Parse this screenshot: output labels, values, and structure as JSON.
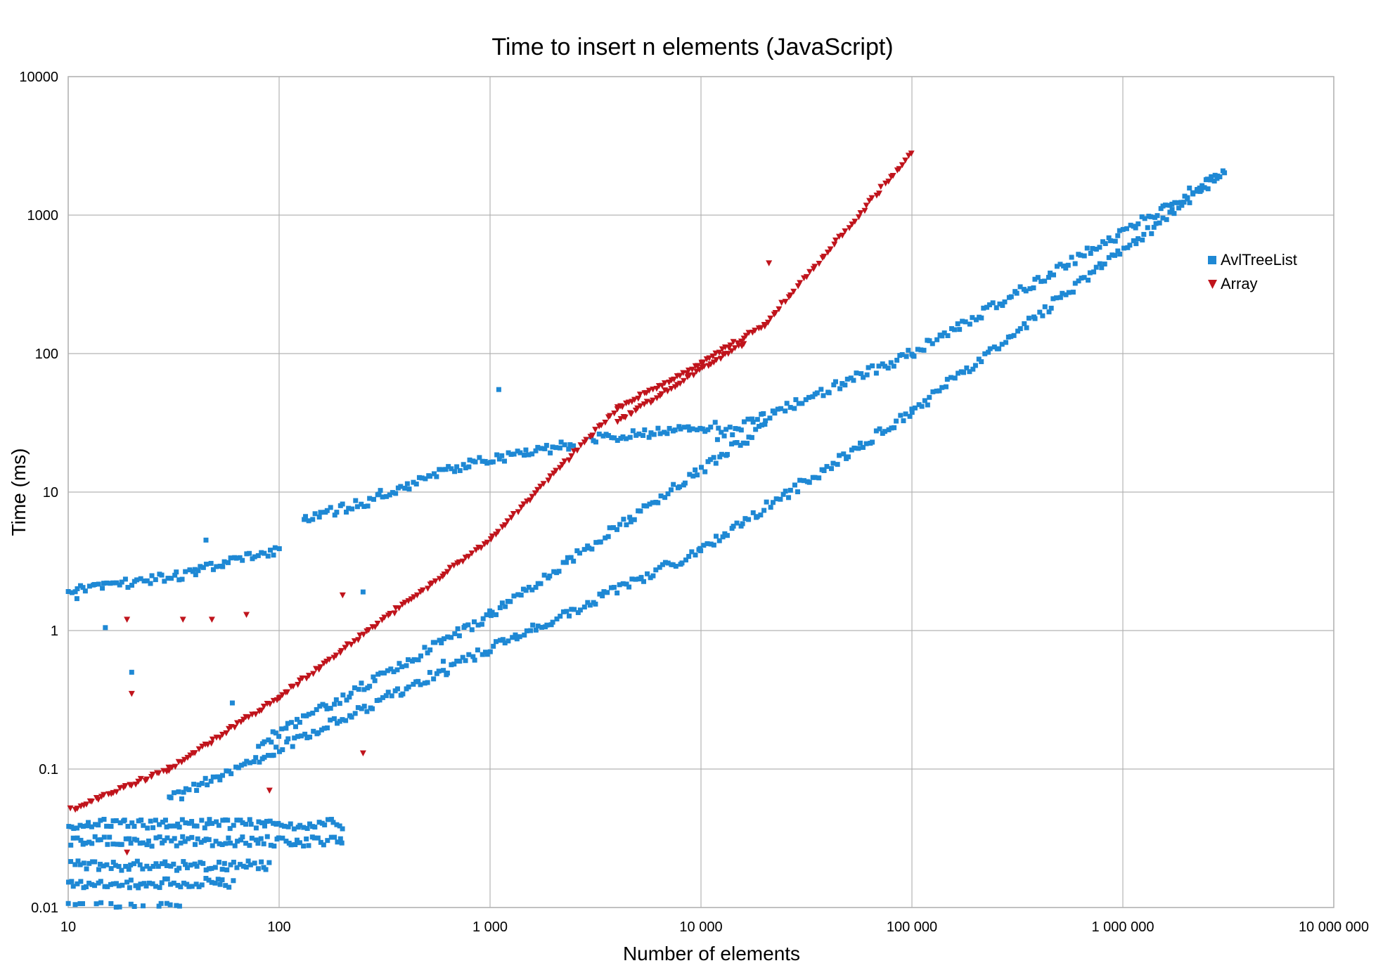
{
  "chart_data": {
    "type": "scatter",
    "title": "Time to insert n elements (JavaScript)",
    "xlabel": "Number of elements",
    "ylabel": "Time (ms)",
    "xscale": "log",
    "yscale": "log",
    "xlim": [
      10,
      10000000
    ],
    "ylim": [
      0.01,
      10000
    ],
    "grid": true,
    "legend_position": "right",
    "x_tick_labels": [
      "10",
      "100",
      "1 000",
      "10 000",
      "100 000",
      "1 000 000",
      "10 000 000"
    ],
    "y_tick_labels": [
      "0.01",
      "0.1",
      "1",
      "10",
      "100",
      "1000",
      "10000"
    ],
    "series": [
      {
        "name": "AvlTreeList",
        "color": "#1e88d4",
        "marker": "square",
        "bands": [
          {
            "from": [
              10,
              1.9
            ],
            "to": [
              40,
              2.6
            ]
          },
          {
            "from": [
              40,
              2.7
            ],
            "to": [
              100,
              3.8
            ]
          },
          {
            "from": [
              130,
              6.3
            ],
            "to": [
              300,
              9.0
            ]
          },
          {
            "from": [
              300,
              9.5
            ],
            "to": [
              800,
              16
            ]
          },
          {
            "from": [
              800,
              16
            ],
            "to": [
              2500,
              22
            ]
          },
          {
            "from": [
              3000,
              24
            ],
            "to": [
              12000,
              30
            ]
          },
          {
            "from": [
              12000,
              25
            ],
            "to": [
              100000,
              100
            ]
          },
          {
            "from": [
              100000,
              100
            ],
            "to": [
              3000000,
              2000
            ]
          },
          {
            "from": [
              80,
              0.15
            ],
            "to": [
              1000,
              1.3
            ]
          },
          {
            "from": [
              1000,
              1.3
            ],
            "to": [
              20000,
              30
            ]
          },
          {
            "from": [
              30,
              0.06
            ],
            "to": [
              10000,
              3.8
            ]
          },
          {
            "from": [
              10000,
              3.8
            ],
            "to": [
              100000,
              38
            ]
          },
          {
            "from": [
              100000,
              38
            ],
            "to": [
              3000000,
              2000
            ]
          },
          {
            "from": [
              10,
              0.01
            ],
            "to": [
              35,
              0.01
            ]
          },
          {
            "from": [
              10,
              0.015
            ],
            "to": [
              60,
              0.015
            ]
          },
          {
            "from": [
              10,
              0.02
            ],
            "to": [
              90,
              0.02
            ]
          },
          {
            "from": [
              10,
              0.03
            ],
            "to": [
              200,
              0.03
            ]
          },
          {
            "from": [
              10,
              0.04
            ],
            "to": [
              200,
              0.04
            ]
          }
        ],
        "outliers": [
          [
            1100,
            55
          ],
          [
            11,
            1.7
          ],
          [
            15,
            1.05
          ],
          [
            20,
            0.5
          ],
          [
            45,
            4.5
          ],
          [
            60,
            0.3
          ],
          [
            250,
            1.9
          ],
          [
            600,
            0.6
          ]
        ]
      },
      {
        "name": "Array",
        "color": "#c0141c",
        "marker": "triangle-down",
        "bands": [
          {
            "from": [
              10,
              0.05
            ],
            "to": [
              30,
              0.1
            ]
          },
          {
            "from": [
              30,
              0.1
            ],
            "to": [
              100,
              0.33
            ]
          },
          {
            "from": [
              100,
              0.33
            ],
            "to": [
              1000,
              4.5
            ]
          },
          {
            "from": [
              1000,
              4.5
            ],
            "to": [
              4000,
              40
            ]
          },
          {
            "from": [
              4000,
              40
            ],
            "to": [
              10000,
              85
            ]
          },
          {
            "from": [
              10000,
              85
            ],
            "to": [
              20000,
              160
            ]
          },
          {
            "from": [
              20000,
              160
            ],
            "to": [
              100000,
              2800
            ]
          },
          {
            "from": [
              4000,
              32
            ],
            "to": [
              16000,
              120
            ]
          }
        ],
        "outliers": [
          [
            21000,
            450
          ],
          [
            19,
            1.2
          ],
          [
            35,
            1.2
          ],
          [
            48,
            1.2
          ],
          [
            70,
            1.3
          ],
          [
            200,
            1.8
          ],
          [
            20,
            0.35
          ],
          [
            250,
            0.13
          ],
          [
            90,
            0.07
          ],
          [
            19,
            0.025
          ]
        ]
      }
    ]
  }
}
